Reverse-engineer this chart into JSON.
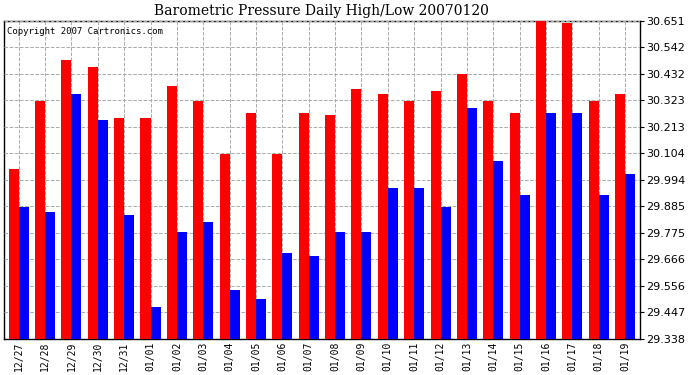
{
  "title": "Barometric Pressure Daily High/Low 20070120",
  "copyright": "Copyright 2007 Cartronics.com",
  "dates": [
    "12/27",
    "12/28",
    "12/29",
    "12/30",
    "12/31",
    "01/01",
    "01/02",
    "01/03",
    "01/04",
    "01/05",
    "01/06",
    "01/07",
    "01/08",
    "01/09",
    "01/10",
    "01/11",
    "01/12",
    "01/13",
    "01/14",
    "01/15",
    "01/16",
    "01/17",
    "01/18",
    "01/19"
  ],
  "highs": [
    30.04,
    30.32,
    30.49,
    30.46,
    30.25,
    30.25,
    30.38,
    30.32,
    30.1,
    30.27,
    30.1,
    30.27,
    30.26,
    30.37,
    30.35,
    30.32,
    30.36,
    30.43,
    30.32,
    30.27,
    30.66,
    30.64,
    30.32,
    30.35
  ],
  "lows": [
    29.88,
    29.86,
    30.35,
    30.24,
    29.85,
    29.47,
    29.78,
    29.82,
    29.54,
    29.5,
    29.69,
    29.68,
    29.78,
    29.78,
    29.96,
    29.96,
    29.88,
    30.29,
    30.07,
    29.93,
    30.27,
    30.27,
    29.93,
    30.02
  ],
  "high_color": "#ff0000",
  "low_color": "#0000ff",
  "bg_color": "#ffffff",
  "grid_color": "#aaaaaa",
  "ymin": 29.338,
  "ymax": 30.651,
  "yticks": [
    29.338,
    29.447,
    29.556,
    29.666,
    29.775,
    29.885,
    29.994,
    30.104,
    30.213,
    30.323,
    30.432,
    30.542,
    30.651
  ]
}
